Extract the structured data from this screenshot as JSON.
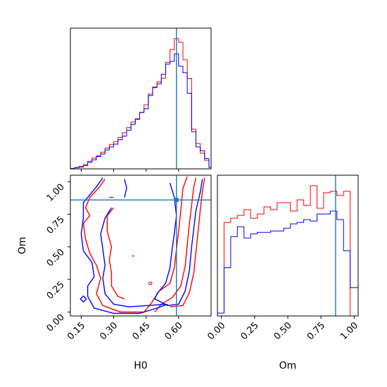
{
  "chart_data": {
    "type": "corner",
    "parameters": [
      "H0",
      "Om"
    ],
    "truth": {
      "H0": 0.59,
      "Om": 0.86,
      "color": "#1f77b4"
    },
    "series_colors": {
      "red": "#ff0000",
      "blue": "#0000ff"
    },
    "panels": [
      {
        "id": "h0-marginal",
        "type": "step-histogram",
        "param": "H0",
        "xlim": [
          0.1,
          0.75
        ],
        "x_ticks": [
          0.15,
          0.3,
          0.45,
          0.6
        ],
        "tick_labels_shown": false,
        "y_ticks_shown": false,
        "bin_edges": [
          0.1,
          0.12,
          0.14,
          0.16,
          0.18,
          0.2,
          0.22,
          0.24,
          0.26,
          0.28,
          0.3,
          0.32,
          0.34,
          0.36,
          0.38,
          0.4,
          0.42,
          0.44,
          0.46,
          0.48,
          0.5,
          0.52,
          0.54,
          0.56,
          0.58,
          0.6,
          0.62,
          0.64,
          0.66,
          0.68,
          0.7,
          0.72,
          0.74,
          0.75
        ],
        "series": [
          {
            "name": "red",
            "values": [
              0.3,
              1.0,
              1.8,
              3.0,
              5.3,
              7.6,
              9.3,
              11.8,
              14.6,
              17.2,
              19.2,
              22.2,
              25.4,
              29.0,
              33.1,
              35.3,
              39.9,
              45.1,
              52.7,
              57.7,
              61.3,
              63.9,
              75.1,
              83.9,
              91.8,
              89.2,
              76.9,
              63.7,
              28.0,
              17.9,
              11.0,
              6.0,
              1.0
            ]
          },
          {
            "name": "blue",
            "values": [
              0.3,
              0.8,
              1.3,
              2.3,
              4.6,
              6.4,
              8.7,
              10.5,
              13.3,
              15.4,
              17.4,
              20.5,
              23.1,
              27.2,
              31.5,
              34.9,
              39.7,
              42.3,
              51.7,
              57.2,
              60.0,
              66.7,
              73.8,
              75.8,
              81.0,
              72.3,
              67.7,
              53.3,
              26.2,
              15.4,
              12.8,
              7.2,
              1.0
            ]
          }
        ]
      },
      {
        "id": "joint-h0-om",
        "type": "contour",
        "x_param": "H0",
        "y_param": "Om",
        "xlim": [
          0.1,
          0.75
        ],
        "ylim": [
          -0.03,
          1.05
        ],
        "x_ticks": [
          0.15,
          0.3,
          0.45,
          0.6
        ],
        "x_tick_labels": [
          "0.15",
          "0.30",
          "0.45",
          "0.60"
        ],
        "y_ticks": [
          0.0,
          0.25,
          0.5,
          0.75,
          1.0
        ],
        "y_tick_labels": [
          "0.00",
          "0.25",
          "0.50",
          "0.75",
          "1.00"
        ],
        "xlabel": "H0",
        "ylabel": "Om",
        "series": [
          {
            "name": "red",
            "contours": [
              [
                [
                  0.26,
                  1.02
                ],
                [
                  0.23,
                  0.95
                ],
                [
                  0.19,
                  0.88
                ],
                [
                  0.17,
                  0.8
                ],
                [
                  0.19,
                  0.74
                ],
                [
                  0.16,
                  0.68
                ],
                [
                  0.17,
                  0.56
                ],
                [
                  0.19,
                  0.45
                ],
                [
                  0.22,
                  0.36
                ],
                [
                  0.24,
                  0.26
                ],
                [
                  0.22,
                  0.14
                ],
                [
                  0.25,
                  0.05
                ],
                [
                  0.33,
                  0.0
                ],
                [
                  0.44,
                  0.0
                ],
                [
                  0.47,
                  0.06
                ],
                [
                  0.51,
                  0.16
                ],
                [
                  0.56,
                  0.22
                ],
                [
                  0.58,
                  0.34
                ],
                [
                  0.59,
                  0.48
                ],
                [
                  0.6,
                  0.62
                ],
                [
                  0.61,
                  0.78
                ],
                [
                  0.62,
                  0.95
                ],
                [
                  0.64,
                  1.04
                ]
              ],
              [
                [
                  0.3,
                  0.8
                ],
                [
                  0.27,
                  0.74
                ],
                [
                  0.27,
                  0.62
                ],
                [
                  0.29,
                  0.5
                ],
                [
                  0.28,
                  0.4
                ],
                [
                  0.29,
                  0.3
                ],
                [
                  0.29,
                  0.2
                ],
                [
                  0.32,
                  0.12
                ],
                [
                  0.35,
                  0.1
                ]
              ],
              [
                [
                  0.56,
                  0.04
                ],
                [
                  0.62,
                  0.05
                ],
                [
                  0.65,
                  0.15
                ],
                [
                  0.67,
                  0.3
                ],
                [
                  0.68,
                  0.46
                ],
                [
                  0.69,
                  0.62
                ],
                [
                  0.7,
                  0.78
                ],
                [
                  0.71,
                  0.93
                ],
                [
                  0.72,
                  1.03
                ]
              ],
              [
                [
                  0.49,
                  0.0
                ],
                [
                  0.52,
                  0.06
                ],
                [
                  0.57,
                  0.11
                ],
                [
                  0.61,
                  0.2
                ],
                [
                  0.63,
                  0.35
                ],
                [
                  0.64,
                  0.52
                ],
                [
                  0.65,
                  0.68
                ],
                [
                  0.66,
                  0.82
                ],
                [
                  0.67,
                  0.96
                ],
                [
                  0.68,
                  1.03
                ]
              ]
            ]
          },
          {
            "name": "blue",
            "contours": [
              [
                [
                  0.25,
                  1.03
                ],
                [
                  0.22,
                  0.96
                ],
                [
                  0.19,
                  0.9
                ],
                [
                  0.16,
                  0.84
                ],
                [
                  0.16,
                  0.72
                ],
                [
                  0.15,
                  0.6
                ],
                [
                  0.16,
                  0.47
                ],
                [
                  0.2,
                  0.38
                ],
                [
                  0.21,
                  0.27
                ],
                [
                  0.18,
                  0.2
                ],
                [
                  0.18,
                  0.12
                ],
                [
                  0.21,
                  0.03
                ],
                [
                  0.3,
                  -0.01
                ],
                [
                  0.42,
                  -0.01
                ],
                [
                  0.5,
                  0.03
                ],
                [
                  0.55,
                  0.06
                ]
              ],
              [
                [
                  0.29,
                  0.8
                ],
                [
                  0.26,
                  0.72
                ],
                [
                  0.24,
                  0.6
                ],
                [
                  0.25,
                  0.48
                ],
                [
                  0.26,
                  0.36
                ],
                [
                  0.25,
                  0.26
                ],
                [
                  0.26,
                  0.14
                ],
                [
                  0.3,
                  0.06
                ],
                [
                  0.37,
                  0.04
                ],
                [
                  0.46,
                  0.05
                ],
                [
                  0.54,
                  0.06
                ]
              ],
              [
                [
                  0.35,
                  1.02
                ],
                [
                  0.36,
                  0.95
                ],
                [
                  0.35,
                  0.88
                ]
              ],
              [
                [
                  0.56,
                  0.99
                ],
                [
                  0.58,
                  0.88
                ],
                [
                  0.59,
                  0.74
                ],
                [
                  0.58,
                  0.6
                ],
                [
                  0.57,
                  0.48
                ],
                [
                  0.56,
                  0.34
                ],
                [
                  0.54,
                  0.22
                ],
                [
                  0.5,
                  0.14
                ],
                [
                  0.49,
                  0.1
                ],
                [
                  0.55,
                  0.05
                ],
                [
                  0.6,
                  0.06
                ],
                [
                  0.63,
                  0.16
                ],
                [
                  0.65,
                  0.32
                ],
                [
                  0.66,
                  0.5
                ],
                [
                  0.67,
                  0.64
                ],
                [
                  0.68,
                  0.78
                ],
                [
                  0.7,
                  0.92
                ],
                [
                  0.71,
                  1.02
                ]
              ]
            ]
          }
        ]
      },
      {
        "id": "om-marginal",
        "type": "step-histogram",
        "param": "Om",
        "xlim": [
          -0.03,
          1.03
        ],
        "x_ticks": [
          0.0,
          0.25,
          0.5,
          0.75,
          1.0
        ],
        "x_tick_labels": [
          "0.00",
          "0.25",
          "0.50",
          "0.75",
          "1.00"
        ],
        "tick_labels_shown": true,
        "y_ticks_shown": false,
        "xlabel": "Om",
        "bin_edges": [
          -0.03,
          0.02,
          0.07,
          0.12,
          0.17,
          0.22,
          0.27,
          0.32,
          0.37,
          0.42,
          0.47,
          0.52,
          0.57,
          0.62,
          0.67,
          0.72,
          0.77,
          0.82,
          0.87,
          0.92,
          0.97,
          1.03
        ],
        "series": [
          {
            "name": "red",
            "values": [
              2.0,
              66.0,
              69.0,
              71.0,
              75.0,
              69.0,
              72.0,
              77.0,
              75.0,
              80.0,
              80.0,
              74.0,
              82.0,
              78.0,
              92.0,
              76.0,
              87.0,
              88.0,
              85.0,
              88.0,
              0.0
            ]
          },
          {
            "name": "blue",
            "values": [
              2.0,
              34.0,
              56.0,
              63.0,
              55.0,
              58.0,
              59.0,
              59.0,
              60.0,
              60.0,
              62.0,
              65.0,
              66.0,
              68.0,
              67.0,
              72.0,
              72.0,
              74.0,
              68.0,
              46.0,
              20.0
            ]
          }
        ]
      }
    ]
  }
}
